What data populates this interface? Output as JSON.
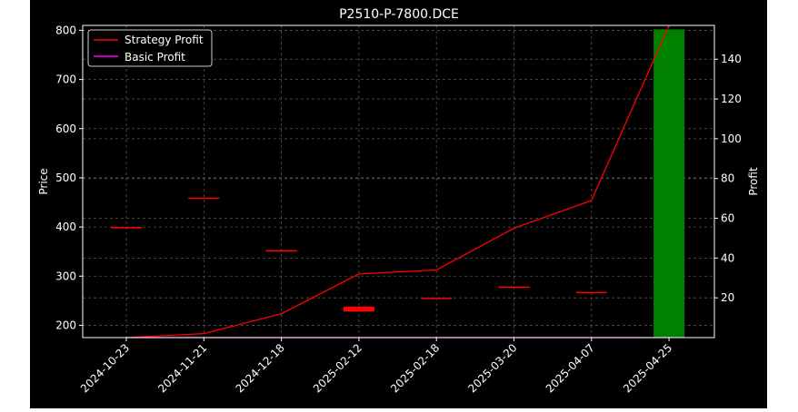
{
  "chart_data": {
    "type": "candlestick+line+bar",
    "title": "P2510-P-7800.DCE",
    "ylabel_left": "Price",
    "ylabel_right": "Profit",
    "categories": [
      "2024-10-23",
      "2024-11-21",
      "2024-12-18",
      "2025-02-12",
      "2025-02-18",
      "2025-03-20",
      "2025-04-07",
      "2025-04-25"
    ],
    "ylim_left": [
      175,
      810
    ],
    "ylim_right": [
      0,
      157
    ],
    "yticks_left": [
      200,
      300,
      400,
      500,
      600,
      700,
      800
    ],
    "yticks_right": [
      20,
      40,
      60,
      80,
      100,
      120,
      140
    ],
    "grid": true,
    "legend_position": "upper-left",
    "price_candles": [
      {
        "date": "2024-10-23",
        "open": 400,
        "close": 400,
        "color": "#ff0000"
      },
      {
        "date": "2024-11-21",
        "open": 460,
        "close": 460,
        "color": "#ff0000"
      },
      {
        "date": "2024-12-18",
        "open": 353,
        "close": 353,
        "color": "#ff0000"
      },
      {
        "date": "2025-02-12",
        "open": 238,
        "close": 228,
        "color": "#ff0000"
      },
      {
        "date": "2025-02-18",
        "open": 256,
        "close": 256,
        "color": "#ff0000"
      },
      {
        "date": "2025-03-20",
        "open": 279,
        "close": 279,
        "color": "#ff0000"
      },
      {
        "date": "2025-04-07",
        "open": 268,
        "close": 268,
        "color": "#ff0000"
      }
    ],
    "series": [
      {
        "name": "Strategy Profit",
        "axis": "right",
        "color": "#ff0000",
        "values": [
          0,
          2,
          12,
          32,
          34,
          55,
          69,
          157
        ]
      },
      {
        "name": "Basic Profit",
        "axis": "right",
        "color": "#ff00ff",
        "values": [
          0,
          0,
          0,
          0,
          0,
          0,
          0,
          0
        ]
      }
    ],
    "profit_bar": {
      "date": "2025-04-25",
      "value": 155,
      "color": "#008000"
    }
  }
}
